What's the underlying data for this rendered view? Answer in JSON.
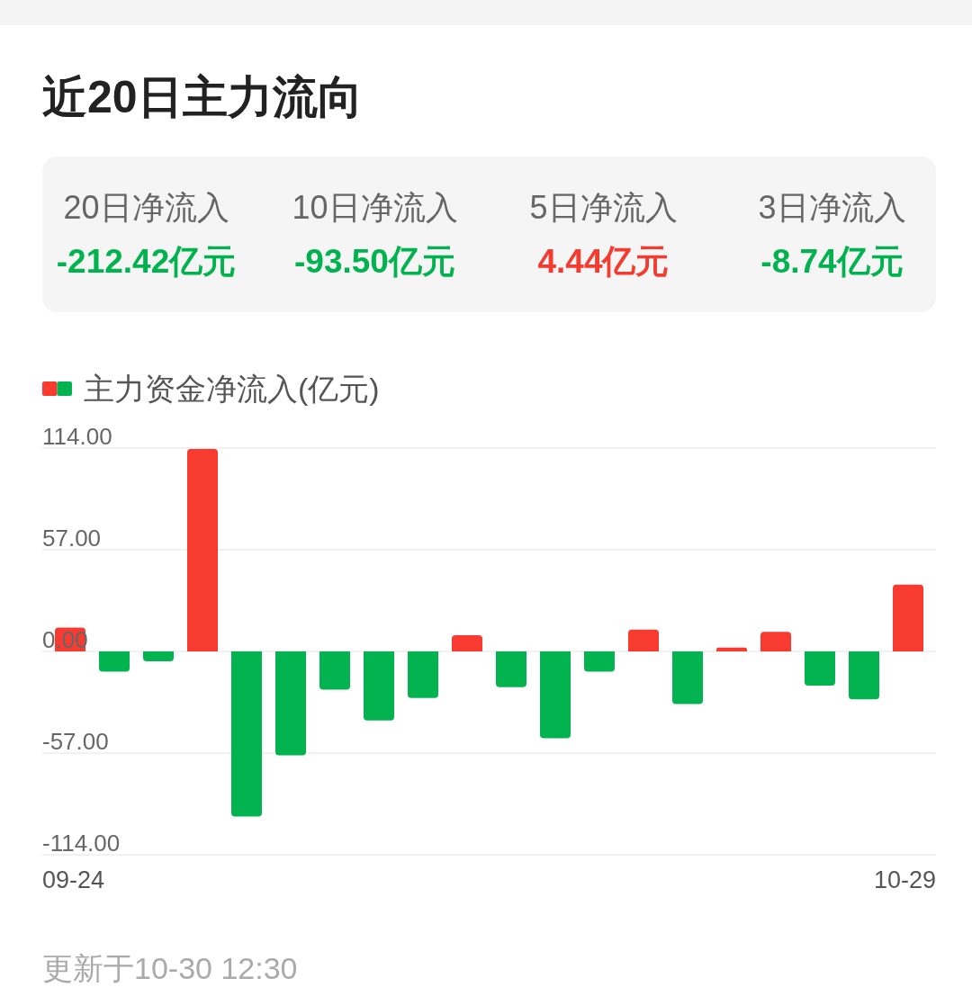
{
  "chart_data": [
    {
      "type": "other",
      "title": "近20日主力流向",
      "categories": [
        "20日净流入",
        "10日净流入",
        "5日净流入",
        "3日净流入"
      ],
      "value_labels": [
        "-212.42亿元",
        "-93.50亿元",
        "4.44亿元",
        "-8.74亿元"
      ],
      "colors": [
        "#00b34f",
        "#00b34f",
        "#f53a30",
        "#00b34f"
      ]
    },
    {
      "type": "bar",
      "categories": [
        "09-24",
        null,
        null,
        null,
        null,
        null,
        null,
        null,
        null,
        null,
        null,
        null,
        null,
        null,
        null,
        null,
        null,
        null,
        null,
        "10-29"
      ],
      "series": [
        {
          "name": "主力资金净流入(亿元)",
          "colors": [
            "#f73b31",
            "#02b34f",
            "#02b34f",
            "#f73b31",
            "#02b34f",
            "#02b34f",
            "#02b34f",
            "#02b34f",
            "#02b34f",
            "#f73b31",
            "#02b34f",
            "#02b34f",
            "#02b34f",
            "#f73b31",
            "#02b34f",
            "#f73b31",
            "#f73b31",
            "#02b34f",
            "#02b34f",
            "#f73b31"
          ],
          "values": [
            13.4,
            -11.4,
            -5.5,
            113.5,
            -92.6,
            -58.2,
            -21.5,
            -38.7,
            -26.1,
            9.1,
            -20.0,
            -48.7,
            -11.3,
            12.2,
            -29.5,
            2.1,
            11.0,
            -19.2,
            -26.8,
            37.4
          ]
        }
      ],
      "ylim": [
        -114,
        114
      ],
      "yticks": [
        {
          "value": -114,
          "label": "-114.00"
        },
        {
          "value": -57,
          "label": "-57.00"
        },
        {
          "value": 0,
          "label": "0.00"
        },
        {
          "value": 57,
          "label": "57.00"
        },
        {
          "value": 114,
          "label": "114.00"
        }
      ],
      "grid": "y",
      "legend": "top left",
      "annotations": [
        "更新于10-30 12:30"
      ]
    }
  ]
}
